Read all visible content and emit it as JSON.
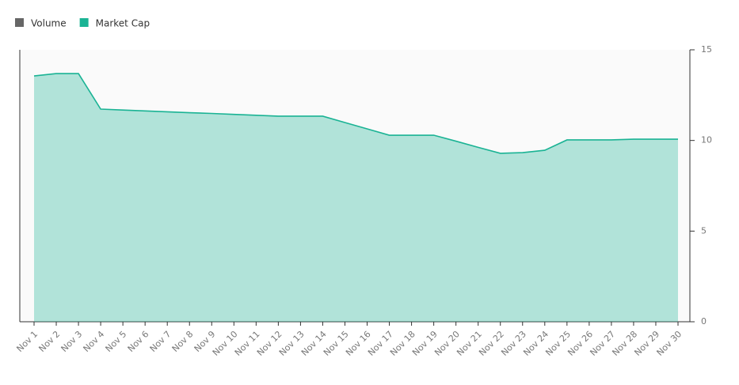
{
  "chart_data": {
    "type": "area",
    "categories": [
      "Nov 1",
      "Nov 2",
      "Nov 3",
      "Nov 4",
      "Nov 5",
      "Nov 6",
      "Nov 7",
      "Nov 8",
      "Nov 9",
      "Nov 10",
      "Nov 11",
      "Nov 12",
      "Nov 13",
      "Nov 14",
      "Nov 15",
      "Nov 16",
      "Nov 17",
      "Nov 18",
      "Nov 19",
      "Nov 20",
      "Nov 21",
      "Nov 22",
      "Nov 23",
      "Nov 24",
      "Nov 25",
      "Nov 26",
      "Nov 27",
      "Nov 28",
      "Nov 29",
      "Nov 30"
    ],
    "series": [
      {
        "name": "Volume",
        "color": "#666666",
        "values": [
          null,
          null,
          null,
          null,
          null,
          null,
          null,
          null,
          null,
          null,
          null,
          null,
          null,
          null,
          null,
          null,
          null,
          null,
          null,
          null,
          null,
          null,
          null,
          null,
          null,
          null,
          null,
          null,
          null,
          null
        ]
      },
      {
        "name": "Market Cap",
        "color": "#1ab394",
        "axis": "y2",
        "values": [
          13.56,
          13.69,
          13.69,
          11.73,
          11.68,
          11.63,
          11.58,
          11.53,
          11.49,
          11.44,
          11.39,
          11.34,
          11.34,
          11.34,
          10.99,
          10.64,
          10.29,
          10.29,
          10.29,
          9.96,
          9.62,
          9.29,
          9.33,
          9.46,
          10.03,
          10.03,
          10.03,
          10.07,
          10.07,
          10.07
        ]
      }
    ],
    "y2lim": [
      0,
      15
    ],
    "y2ticks": [
      0,
      5,
      10,
      15
    ],
    "legend": "top-left"
  }
}
